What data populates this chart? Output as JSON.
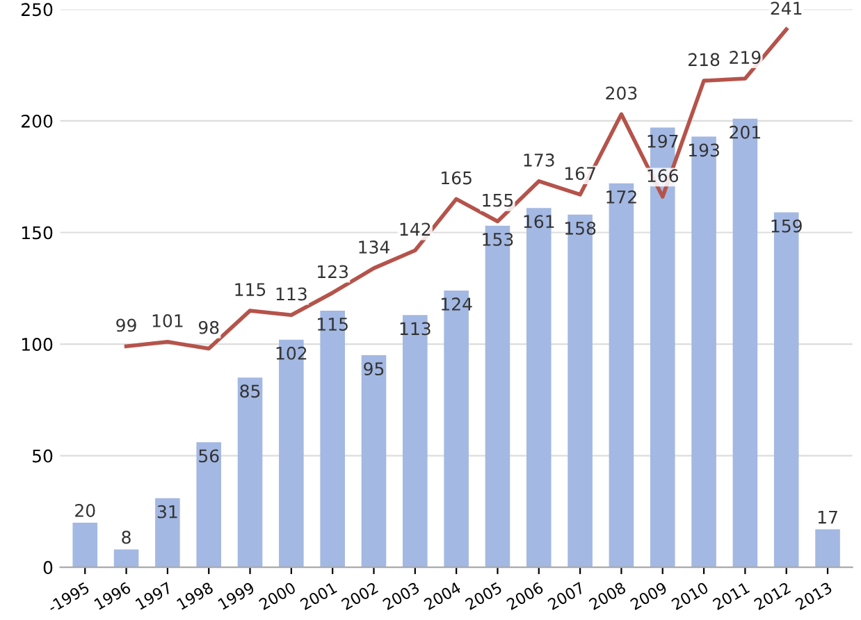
{
  "chart_data": {
    "type": "bar",
    "categories": [
      "-1995",
      "1996",
      "1997",
      "1998",
      "1999",
      "2000",
      "2001",
      "2002",
      "2003",
      "2004",
      "2005",
      "2006",
      "2007",
      "2008",
      "2009",
      "2010",
      "2011",
      "2012",
      "2013"
    ],
    "series": [
      {
        "color": "#a3b8e2",
        "values": [
          20,
          8,
          31,
          56,
          85,
          102,
          115,
          95,
          113,
          124,
          153,
          161,
          158,
          172,
          197,
          193,
          201,
          159,
          17
        ]
      },
      {
        "type": "line",
        "color": "#b5534b",
        "values": [
          null,
          99,
          101,
          98,
          115,
          113,
          123,
          134,
          142,
          165,
          155,
          173,
          167,
          203,
          166,
          218,
          219,
          241,
          null
        ]
      }
    ],
    "ylim": [
      0,
      250
    ],
    "yticks": [
      0,
      50,
      100,
      150,
      200,
      250
    ],
    "grid": "y",
    "data_labels": true,
    "marker": "none",
    "line_style": "solid",
    "legend": false
  }
}
